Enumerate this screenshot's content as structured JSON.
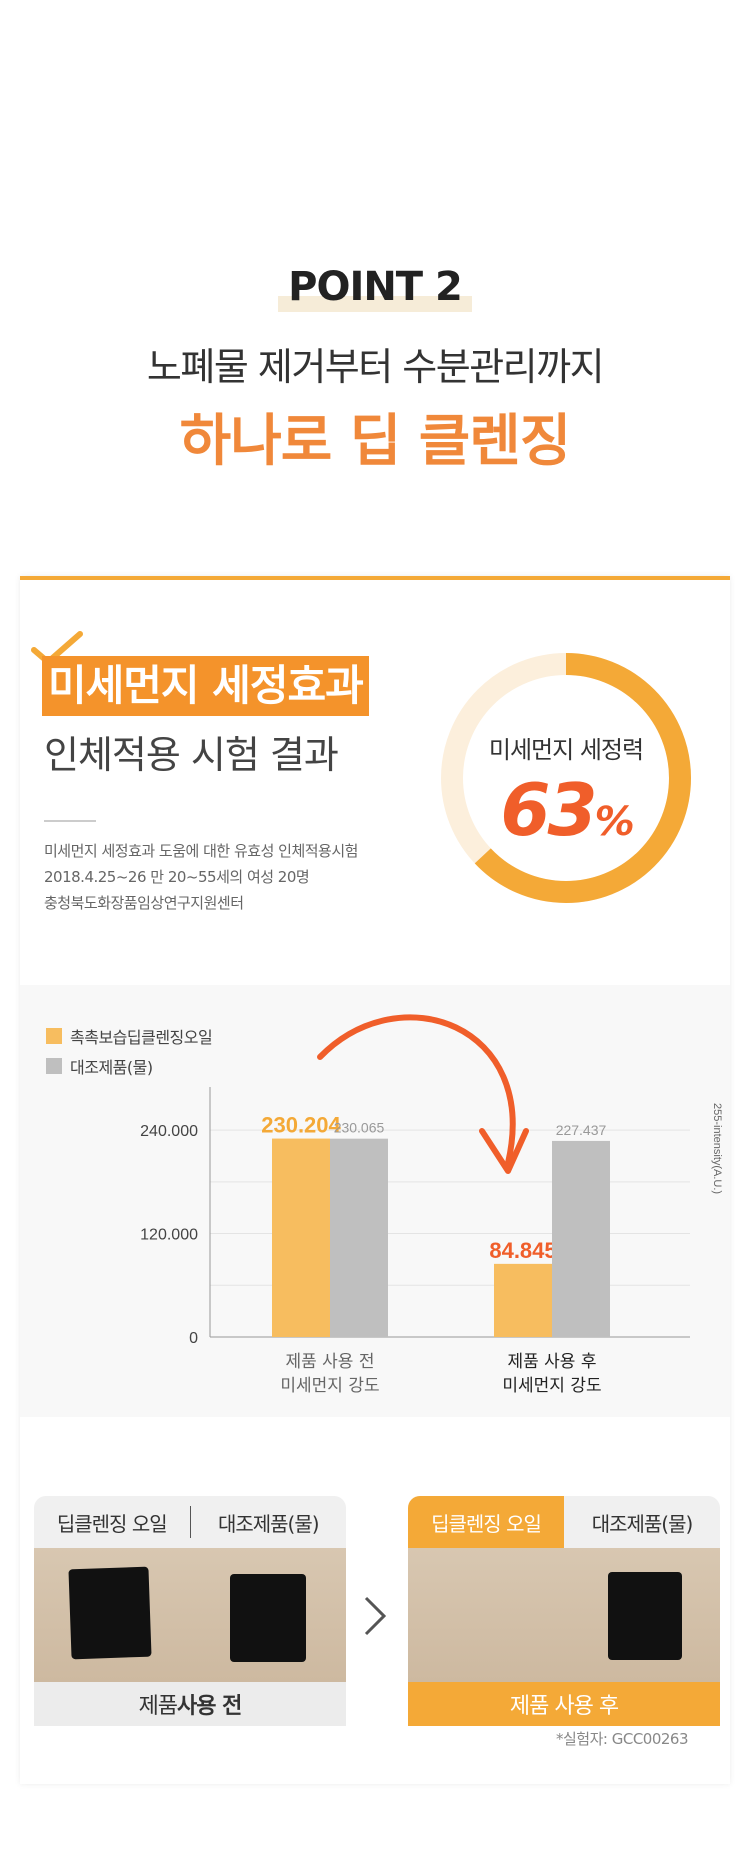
{
  "header": {
    "point": "POINT 2",
    "subtitle": "노폐물 제거부터 수분관리까지",
    "title": "하나로 딥 클렌징"
  },
  "test": {
    "highlight_title": "미세먼지 세정효과",
    "title": "인체적용 시험 결과",
    "info_lines": [
      "미세먼지 세정효과 도움에 대한 유효성 인체적용시험",
      "2018.4.25~26 만 20~55세의 여성 20명",
      "충청북도화장품임상연구지원센터"
    ],
    "ring_label": "미세먼지 세정력",
    "ring_value": "63",
    "ring_unit": "%",
    "ring_fraction": 0.63
  },
  "chart_data": {
    "type": "bar",
    "categories": [
      "제품 사용 전\n미세먼지 강도",
      "제품 사용 후\n미세먼지 강도"
    ],
    "category_lines": [
      [
        "제품 사용 전",
        "미세먼지 강도"
      ],
      [
        "제품 사용 후",
        "미세먼지 강도"
      ]
    ],
    "series": [
      {
        "name": "촉촉보습딥클렌징오일",
        "values": [
          230.204,
          84.845
        ],
        "labels": [
          "230.204",
          "84.845"
        ],
        "color": "#f7bd5f"
      },
      {
        "name": "대조제품(물)",
        "values": [
          230.065,
          227.437
        ],
        "labels": [
          "230.065",
          "227.437"
        ],
        "color": "#bfbfbf"
      }
    ],
    "yticks": [
      0,
      120,
      240
    ],
    "ytick_labels": [
      "0",
      "120.000",
      "240.000"
    ],
    "ylim": [
      0,
      290
    ],
    "ylabel": "255-intensity(A.U.)",
    "grid": true,
    "legend_position": "top-left"
  },
  "photos": {
    "before": {
      "col1": "딥클렌징 오일",
      "col2": "대조제품(물)",
      "footer_normal": "제품 ",
      "footer_bold": "사용 전"
    },
    "after": {
      "col1": "딥클렌징 오일",
      "col2": "대조제품(물)",
      "footer": "제품 사용 후"
    },
    "next_icon": "chevron-right-icon",
    "note": "*실험자: GCC00263"
  },
  "colors": {
    "accent": "#f4a937",
    "title_orange": "#f0883a",
    "value_red": "#f05e2a"
  }
}
